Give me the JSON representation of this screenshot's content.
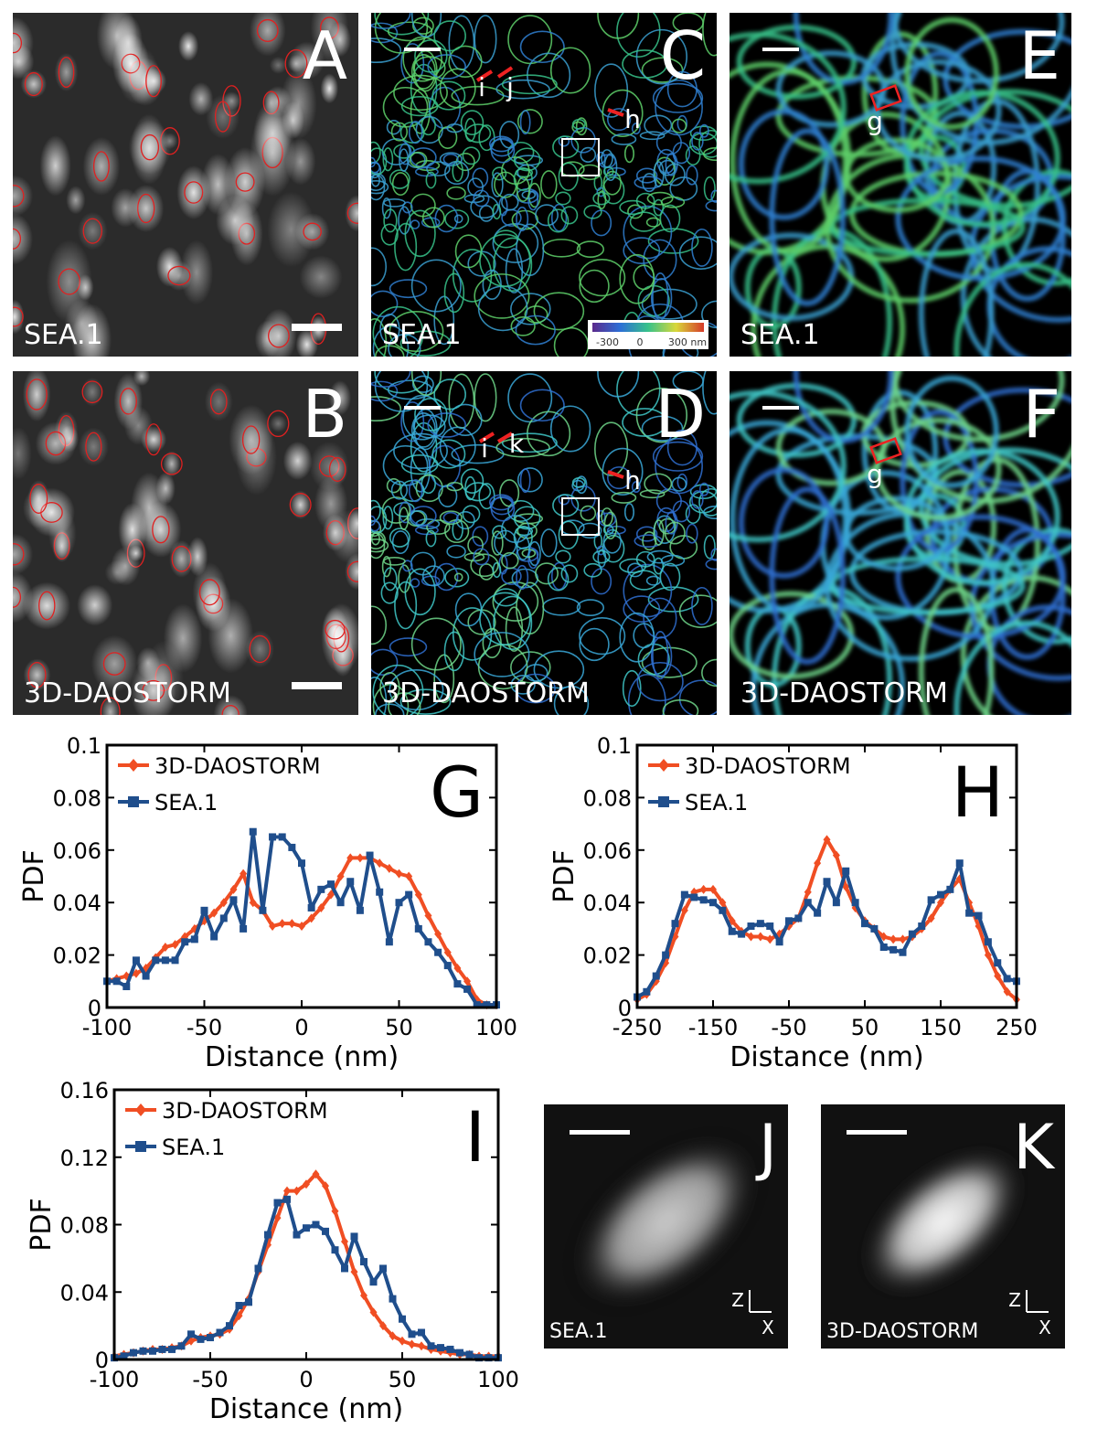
{
  "panels": [
    {
      "letter": "A",
      "caption": "SEA.1"
    },
    {
      "letter": "B",
      "caption": "3D-DAOSTORM"
    },
    {
      "letter": "C",
      "caption": "SEA.1",
      "labels": [
        "i",
        "j",
        "h"
      ],
      "colorbar": [
        "-300",
        "0",
        "300 nm"
      ]
    },
    {
      "letter": "D",
      "caption": "3D-DAOSTORM",
      "labels": [
        "i",
        "k",
        "h"
      ]
    },
    {
      "letter": "E",
      "caption": "SEA.1",
      "labels": [
        "g"
      ]
    },
    {
      "letter": "F",
      "caption": "3D-DAOSTORM",
      "labels": [
        "g"
      ]
    },
    {
      "letter": "J",
      "caption": "SEA.1",
      "axes": [
        "Z",
        "X"
      ]
    },
    {
      "letter": "K",
      "caption": "3D-DAOSTORM",
      "axes": [
        "Z",
        "X"
      ]
    }
  ],
  "chart_data": [
    {
      "type": "line",
      "panel_label": "G",
      "xlabel": "Distance (nm)",
      "ylabel": "PDF",
      "legend": "upper left",
      "x": [
        -100,
        -95,
        -90,
        -85,
        -80,
        -75,
        -70,
        -65,
        -60,
        -55,
        -50,
        -45,
        -40,
        -35,
        -30,
        -25,
        -20,
        -15,
        -10,
        -5,
        0,
        5,
        10,
        15,
        20,
        25,
        30,
        35,
        40,
        45,
        50,
        55,
        60,
        65,
        70,
        75,
        80,
        85,
        90,
        95,
        100
      ],
      "series": [
        {
          "name": "3D-DAOSTORM",
          "color": "#f04e23",
          "marker": "diamond",
          "values": [
            0.01,
            0.011,
            0.012,
            0.013,
            0.015,
            0.019,
            0.023,
            0.024,
            0.027,
            0.03,
            0.033,
            0.036,
            0.04,
            0.045,
            0.051,
            0.04,
            0.037,
            0.031,
            0.032,
            0.032,
            0.031,
            0.034,
            0.038,
            0.043,
            0.05,
            0.057,
            0.057,
            0.057,
            0.055,
            0.053,
            0.051,
            0.05,
            0.043,
            0.035,
            0.028,
            0.021,
            0.015,
            0.01,
            0.003,
            0.001,
            0.001
          ]
        },
        {
          "name": "SEA.1",
          "color": "#1f4e8c",
          "marker": "square",
          "values": [
            0.01,
            0.01,
            0.008,
            0.018,
            0.012,
            0.018,
            0.018,
            0.018,
            0.025,
            0.026,
            0.037,
            0.027,
            0.034,
            0.041,
            0.03,
            0.067,
            0.037,
            0.065,
            0.065,
            0.061,
            0.055,
            0.038,
            0.045,
            0.047,
            0.04,
            0.048,
            0.037,
            0.058,
            0.044,
            0.025,
            0.04,
            0.043,
            0.03,
            0.025,
            0.021,
            0.016,
            0.009,
            0.007,
            0.001,
            0.001,
            0.001
          ]
        }
      ],
      "xlim": [
        -100,
        100
      ],
      "ylim": [
        0,
        0.1
      ],
      "xticks": [
        -100,
        -50,
        0,
        50,
        100
      ],
      "yticks": [
        0,
        0.02,
        0.04,
        0.06,
        0.08,
        0.1
      ]
    },
    {
      "type": "line",
      "panel_label": "H",
      "xlabel": "Distance (nm)",
      "ylabel": "PDF",
      "legend": "upper left",
      "x": [
        -250,
        -237.5,
        -225,
        -212.5,
        -200,
        -187.5,
        -175,
        -162.5,
        -150,
        -137.5,
        -125,
        -112.5,
        -100,
        -87.5,
        -75,
        -62.5,
        -50,
        -37.5,
        -25,
        -12.5,
        0,
        12.5,
        25,
        37.5,
        50,
        62.5,
        75,
        87.5,
        100,
        112.5,
        125,
        137.5,
        150,
        162.5,
        175,
        187.5,
        200,
        212.5,
        225,
        237.5,
        250
      ],
      "series": [
        {
          "name": "3D-DAOSTORM",
          "color": "#f04e23",
          "marker": "diamond",
          "values": [
            0.003,
            0.005,
            0.01,
            0.017,
            0.027,
            0.037,
            0.044,
            0.045,
            0.045,
            0.04,
            0.033,
            0.029,
            0.027,
            0.027,
            0.026,
            0.028,
            0.031,
            0.034,
            0.044,
            0.055,
            0.064,
            0.058,
            0.046,
            0.038,
            0.033,
            0.03,
            0.027,
            0.026,
            0.026,
            0.027,
            0.03,
            0.034,
            0.04,
            0.045,
            0.049,
            0.04,
            0.031,
            0.02,
            0.012,
            0.006,
            0.003
          ]
        },
        {
          "name": "SEA.1",
          "color": "#1f4e8c",
          "marker": "square",
          "values": [
            0.004,
            0.006,
            0.012,
            0.02,
            0.032,
            0.043,
            0.042,
            0.041,
            0.04,
            0.037,
            0.029,
            0.028,
            0.031,
            0.032,
            0.031,
            0.025,
            0.033,
            0.034,
            0.04,
            0.036,
            0.048,
            0.04,
            0.052,
            0.04,
            0.032,
            0.03,
            0.023,
            0.022,
            0.021,
            0.028,
            0.031,
            0.041,
            0.043,
            0.045,
            0.055,
            0.036,
            0.035,
            0.025,
            0.017,
            0.011,
            0.01
          ]
        }
      ],
      "xlim": [
        -250,
        250
      ],
      "ylim": [
        0,
        0.1
      ],
      "xticks": [
        -250,
        -150,
        -50,
        50,
        150,
        250
      ],
      "yticks": [
        0,
        0.02,
        0.04,
        0.06,
        0.08,
        0.1
      ]
    },
    {
      "type": "line",
      "panel_label": "I",
      "xlabel": "Distance (nm)",
      "ylabel": "PDF",
      "legend": "upper left",
      "x": [
        -100,
        -95,
        -90,
        -85,
        -80,
        -75,
        -70,
        -65,
        -60,
        -55,
        -50,
        -45,
        -40,
        -35,
        -30,
        -25,
        -20,
        -15,
        -10,
        -5,
        0,
        5,
        10,
        15,
        20,
        25,
        30,
        35,
        40,
        45,
        50,
        55,
        60,
        65,
        70,
        75,
        80,
        85,
        90,
        95,
        100
      ],
      "series": [
        {
          "name": "3D-DAOSTORM",
          "color": "#f04e23",
          "marker": "diamond",
          "values": [
            0.002,
            0.003,
            0.004,
            0.005,
            0.006,
            0.006,
            0.007,
            0.008,
            0.011,
            0.013,
            0.014,
            0.015,
            0.018,
            0.026,
            0.036,
            0.052,
            0.068,
            0.084,
            0.1,
            0.1,
            0.104,
            0.11,
            0.103,
            0.088,
            0.07,
            0.052,
            0.038,
            0.028,
            0.02,
            0.014,
            0.011,
            0.009,
            0.008,
            0.006,
            0.005,
            0.004,
            0.003,
            0.003,
            0.002,
            0.002,
            0.002
          ]
        },
        {
          "name": "SEA.1",
          "color": "#1f4e8c",
          "marker": "square",
          "values": [
            0.001,
            0.002,
            0.004,
            0.005,
            0.005,
            0.006,
            0.006,
            0.008,
            0.015,
            0.012,
            0.013,
            0.016,
            0.02,
            0.032,
            0.034,
            0.054,
            0.074,
            0.093,
            0.095,
            0.074,
            0.078,
            0.08,
            0.076,
            0.065,
            0.054,
            0.073,
            0.058,
            0.046,
            0.054,
            0.036,
            0.024,
            0.015,
            0.016,
            0.008,
            0.007,
            0.006,
            0.004,
            0.003,
            0.001,
            0.001,
            0.001
          ]
        }
      ],
      "xlim": [
        -100,
        100
      ],
      "ylim": [
        0,
        0.16
      ],
      "xticks": [
        -100,
        -50,
        0,
        50,
        100
      ],
      "yticks": [
        0,
        0.04,
        0.08,
        0.12,
        0.16
      ]
    }
  ]
}
